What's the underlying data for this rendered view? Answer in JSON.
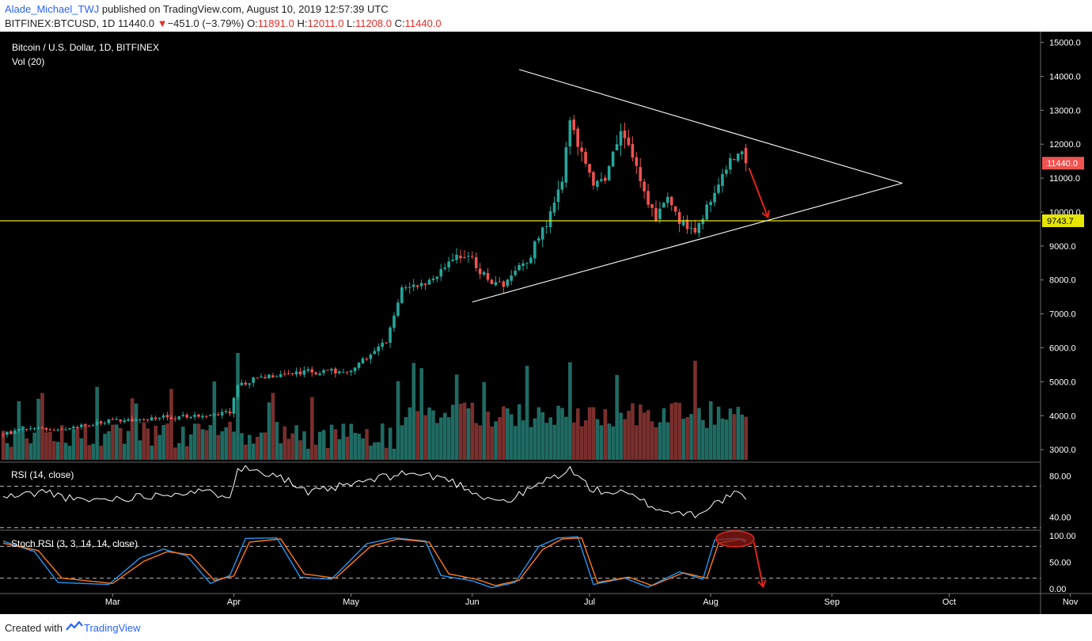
{
  "header": {
    "author": "Alade_Michael_TWJ",
    "published": "published on TradingView.com, August 10, 2019 12:57:39 UTC",
    "symbol_line": "BITFINEX:BTCUSD, 1D",
    "last": "11440.0",
    "down_marker": "▼",
    "change": "−451.0 (−3.79%)",
    "o_label": "O:",
    "o_value": "11891.0",
    "h_label": "H:",
    "h_value": "12011.0",
    "l_label": "L:",
    "l_value": "11208.0",
    "c_label": "C:",
    "c_value": "11440.0"
  },
  "footer": {
    "created": "Created with",
    "brand": "TradingView"
  },
  "colors": {
    "background": "#000000",
    "up": "#26a69a",
    "down": "#ef5350",
    "volume_up": "#1f6b63",
    "volume_down": "#7a2f2d",
    "annotation": "#e0251b",
    "support": "#e6e600",
    "triangle": "#ffffff",
    "rsi": "#ffffff",
    "stoch_k": "#2196f3",
    "stoch_d": "#ff7a1a",
    "axis_text": "#ffffff"
  },
  "chart_data": [
    {
      "type": "candlestick",
      "title": "Bitcoin / U.S. Dollar, 1D, BITFINEX",
      "volume_label": "Vol (20)",
      "ylim": [
        2700,
        15200
      ],
      "y_ticks": [
        "3000.0",
        "4000.0",
        "5000.0",
        "6000.0",
        "7000.0",
        "8000.0",
        "9000.0",
        "10000.0",
        "11000.0",
        "12000.0",
        "13000.0",
        "14000.0",
        "15000.0"
      ],
      "x_labels": [
        "Mar",
        "Apr",
        "May",
        "Jun",
        "Jul",
        "Aug",
        "Sep",
        "Oct",
        "Nov"
      ],
      "price_labels": [
        {
          "text": "11440.0",
          "value": 11440
        },
        {
          "text": "9743.7",
          "value": 9743.7
        }
      ],
      "anchors": [
        [
          "2019-02-01",
          3450
        ],
        [
          "2019-02-08",
          3650
        ],
        [
          "2019-02-15",
          3600
        ],
        [
          "2019-02-24",
          3750
        ],
        [
          "2019-03-01",
          3850
        ],
        [
          "2019-03-15",
          3950
        ],
        [
          "2019-03-31",
          4100
        ],
        [
          "2019-04-02",
          4900
        ],
        [
          "2019-04-10",
          5200
        ],
        [
          "2019-04-20",
          5300
        ],
        [
          "2019-04-30",
          5300
        ],
        [
          "2019-05-10",
          6150
        ],
        [
          "2019-05-14",
          7800
        ],
        [
          "2019-05-21",
          8000
        ],
        [
          "2019-05-27",
          8700
        ],
        [
          "2019-06-01",
          8600
        ],
        [
          "2019-06-06",
          7800
        ],
        [
          "2019-06-10",
          7900
        ],
        [
          "2019-06-15",
          8600
        ],
        [
          "2019-06-20",
          9600
        ],
        [
          "2019-06-24",
          11000
        ],
        [
          "2019-06-26",
          12500
        ],
        [
          "2019-06-29",
          11800
        ],
        [
          "2019-07-02",
          10800
        ],
        [
          "2019-07-05",
          11000
        ],
        [
          "2019-07-09",
          12500
        ],
        [
          "2019-07-12",
          11500
        ],
        [
          "2019-07-16",
          10300
        ],
        [
          "2019-07-18",
          9900
        ],
        [
          "2019-07-21",
          10600
        ],
        [
          "2019-07-24",
          9800
        ],
        [
          "2019-07-28",
          9500
        ],
        [
          "2019-08-02",
          10500
        ],
        [
          "2019-08-06",
          11600
        ],
        [
          "2019-08-09",
          11891
        ],
        [
          "2019-08-10",
          11440
        ]
      ],
      "last_candle": {
        "date": "2019-08-10",
        "open": 11891.0,
        "high": 12011.0,
        "low": 11208.0,
        "close": 11440.0,
        "change": -451.0,
        "change_pct": -3.79
      },
      "support": {
        "value": 9743.7
      },
      "triangle": {
        "upper": [
          [
            "2019-06-13",
            14200
          ],
          [
            "2019-09-19",
            10850
          ]
        ],
        "lower": [
          [
            "2019-06-01",
            7350
          ],
          [
            "2019-09-19",
            10850
          ]
        ]
      },
      "projection_arrow": [
        [
          "2019-08-10",
          11300
        ],
        [
          "2019-08-14",
          9850
        ]
      ]
    },
    {
      "type": "line",
      "title": "RSI (14, close)",
      "ylim": [
        29,
        91
      ],
      "y_ticks": [
        "80.00",
        "40.00"
      ],
      "levels": [
        70,
        30
      ],
      "anchors": [
        [
          "2019-02-01",
          59
        ],
        [
          "2019-02-12",
          65
        ],
        [
          "2019-02-20",
          56
        ],
        [
          "2019-03-05",
          59
        ],
        [
          "2019-03-20",
          65
        ],
        [
          "2019-03-31",
          62
        ],
        [
          "2019-04-02",
          88
        ],
        [
          "2019-04-12",
          82
        ],
        [
          "2019-04-20",
          63
        ],
        [
          "2019-05-05",
          75
        ],
        [
          "2019-05-15",
          83
        ],
        [
          "2019-05-25",
          78
        ],
        [
          "2019-06-04",
          60
        ],
        [
          "2019-06-10",
          55
        ],
        [
          "2019-06-20",
          76
        ],
        [
          "2019-06-26",
          86
        ],
        [
          "2019-07-02",
          66
        ],
        [
          "2019-07-10",
          63
        ],
        [
          "2019-07-20",
          46
        ],
        [
          "2019-07-28",
          43
        ],
        [
          "2019-08-06",
          61
        ],
        [
          "2019-08-09",
          63
        ],
        [
          "2019-08-10",
          57
        ]
      ]
    },
    {
      "type": "line",
      "title": "Stoch RSI (3, 3, 14, 14, close)",
      "ylim": [
        -6,
        106
      ],
      "y_ticks": [
        "100.00",
        "50.00",
        "0.00"
      ],
      "levels": [
        80,
        20
      ],
      "series": [
        {
          "anchors": [
            [
              "2019-02-01",
              90
            ],
            [
              "2019-02-09",
              70
            ],
            [
              "2019-02-15",
              12
            ],
            [
              "2019-02-28",
              8
            ],
            [
              "2019-03-08",
              58
            ],
            [
              "2019-03-14",
              75
            ],
            [
              "2019-03-20",
              62
            ],
            [
              "2019-03-26",
              10
            ],
            [
              "2019-03-31",
              25
            ],
            [
              "2019-04-04",
              95
            ],
            [
              "2019-04-12",
              96
            ],
            [
              "2019-04-18",
              22
            ],
            [
              "2019-04-26",
              18
            ],
            [
              "2019-05-05",
              85
            ],
            [
              "2019-05-12",
              96
            ],
            [
              "2019-05-20",
              90
            ],
            [
              "2019-05-24",
              25
            ],
            [
              "2019-06-01",
              15
            ],
            [
              "2019-06-06",
              2
            ],
            [
              "2019-06-12",
              12
            ],
            [
              "2019-06-18",
              80
            ],
            [
              "2019-06-23",
              96
            ],
            [
              "2019-06-28",
              98
            ],
            [
              "2019-07-02",
              8
            ],
            [
              "2019-07-10",
              20
            ],
            [
              "2019-07-16",
              3
            ],
            [
              "2019-07-24",
              32
            ],
            [
              "2019-07-30",
              18
            ],
            [
              "2019-08-02",
              92
            ],
            [
              "2019-08-08",
              95
            ],
            [
              "2019-08-10",
              88
            ]
          ]
        },
        {
          "anchors": [
            [
              "2019-02-01",
              86
            ],
            [
              "2019-02-10",
              72
            ],
            [
              "2019-02-16",
              20
            ],
            [
              "2019-03-01",
              10
            ],
            [
              "2019-03-09",
              52
            ],
            [
              "2019-03-15",
              70
            ],
            [
              "2019-03-21",
              64
            ],
            [
              "2019-03-27",
              16
            ],
            [
              "2019-04-01",
              24
            ],
            [
              "2019-04-05",
              88
            ],
            [
              "2019-04-13",
              94
            ],
            [
              "2019-04-19",
              28
            ],
            [
              "2019-04-27",
              20
            ],
            [
              "2019-05-06",
              80
            ],
            [
              "2019-05-13",
              94
            ],
            [
              "2019-05-21",
              88
            ],
            [
              "2019-05-26",
              28
            ],
            [
              "2019-06-02",
              18
            ],
            [
              "2019-06-07",
              6
            ],
            [
              "2019-06-13",
              16
            ],
            [
              "2019-06-19",
              74
            ],
            [
              "2019-06-24",
              94
            ],
            [
              "2019-06-29",
              96
            ],
            [
              "2019-07-03",
              12
            ],
            [
              "2019-07-11",
              22
            ],
            [
              "2019-07-17",
              6
            ],
            [
              "2019-07-25",
              30
            ],
            [
              "2019-07-31",
              20
            ],
            [
              "2019-08-03",
              86
            ],
            [
              "2019-08-09",
              94
            ],
            [
              "2019-08-10",
              91
            ]
          ]
        }
      ]
    }
  ]
}
